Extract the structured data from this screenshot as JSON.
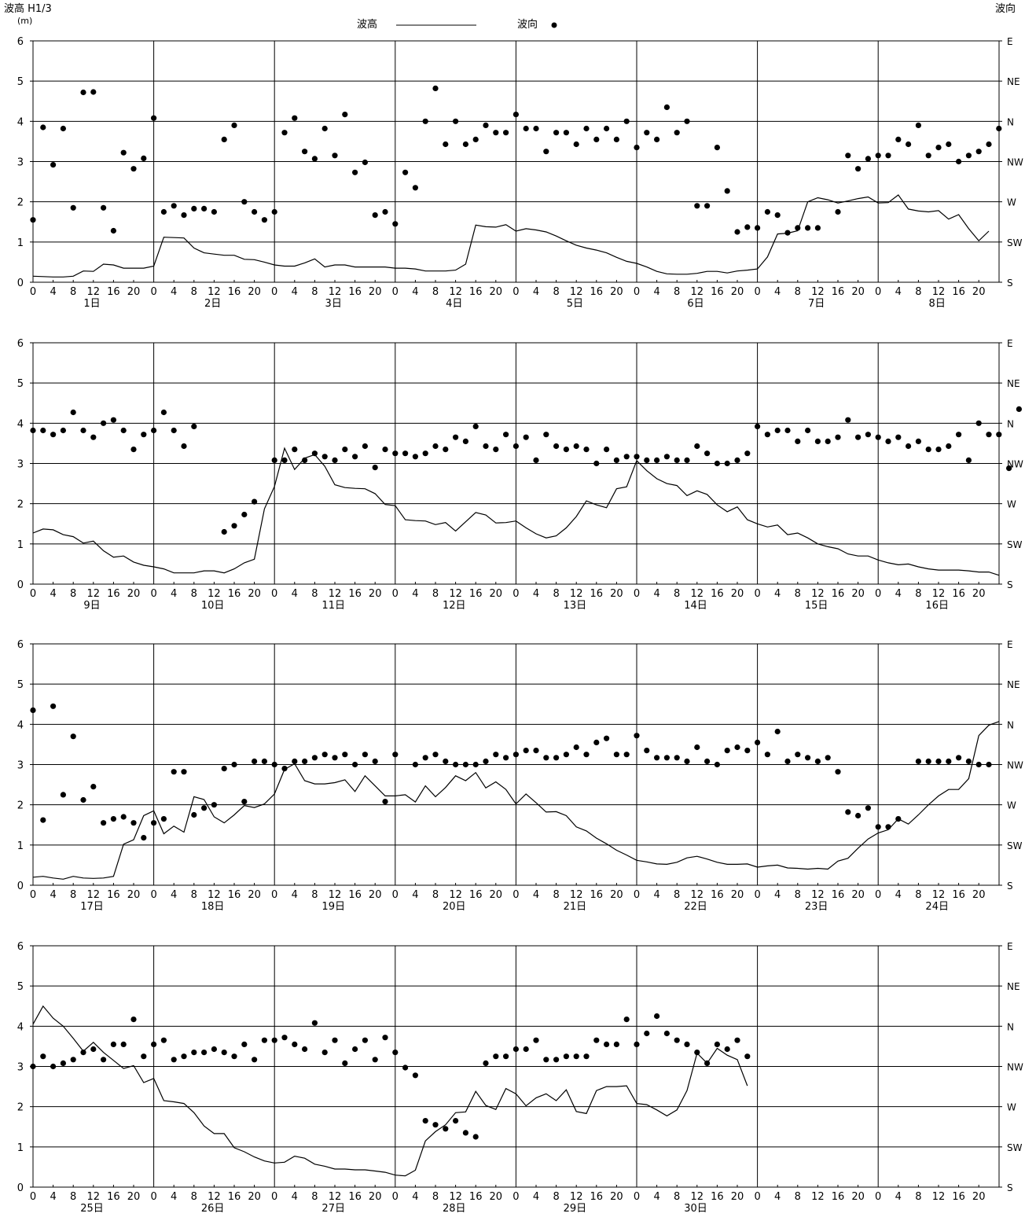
{
  "header": {
    "left_axis_title": "波高 H1/3",
    "left_axis_unit": "(m)",
    "right_axis_title": "波向",
    "legend_wave_height": "波高",
    "legend_wave_direction": "波向"
  },
  "chart_data": {
    "type": "line",
    "description_free": true,
    "y_left": {
      "label": "波高 H1/3",
      "unit": "(m)",
      "range": [
        0,
        6
      ],
      "ticks": [
        "0",
        "1",
        "2",
        "3",
        "4",
        "5",
        "6"
      ]
    },
    "y_right": {
      "label": "波向",
      "ticks": [
        "S",
        "SW",
        "W",
        "NW",
        "N",
        "NE",
        "E"
      ]
    },
    "x_hour_ticks": [
      "0",
      "4",
      "8",
      "12",
      "16",
      "20"
    ],
    "legend": [
      {
        "name": "波高",
        "style": "line"
      },
      {
        "name": "波向",
        "style": "dot"
      }
    ],
    "direction_scale": {
      "S": 0,
      "SW": 1,
      "W": 2,
      "NW": 3,
      "N": 4,
      "NE": 5,
      "E": 6
    },
    "panels": [
      {
        "days": [
          "1日",
          "2日",
          "3日",
          "4日",
          "5日",
          "6日",
          "7日",
          "8日"
        ],
        "wave_height": [
          0.15,
          0.14,
          0.13,
          0.13,
          0.15,
          0.28,
          0.27,
          0.45,
          0.43,
          0.35,
          0.35,
          0.35,
          0.4,
          1.12,
          1.11,
          1.1,
          0.85,
          0.73,
          0.7,
          0.67,
          0.67,
          0.57,
          0.56,
          0.5,
          0.43,
          0.4,
          0.4,
          0.48,
          0.58,
          0.38,
          0.43,
          0.43,
          0.38,
          0.38,
          0.38,
          0.38,
          0.35,
          0.35,
          0.33,
          0.28,
          0.28,
          0.28,
          0.3,
          0.45,
          1.42,
          1.38,
          1.37,
          1.43,
          1.27,
          1.33,
          1.3,
          1.25,
          1.15,
          1.03,
          0.92,
          0.85,
          0.8,
          0.73,
          0.62,
          0.52,
          0.47,
          0.38,
          0.27,
          0.21,
          0.2,
          0.2,
          0.22,
          0.27,
          0.27,
          0.23,
          0.28,
          0.3,
          0.33,
          0.63,
          1.2,
          1.22,
          1.28,
          2.0,
          2.1,
          2.05,
          1.97,
          2.02,
          2.08,
          2.12,
          1.97,
          1.98,
          2.17,
          1.82,
          1.77,
          1.75,
          1.78,
          1.57,
          1.68,
          1.33,
          1.03,
          1.27
        ],
        "wave_direction": [
          1.55,
          3.85,
          2.92,
          3.82,
          1.85,
          4.72,
          4.73,
          1.85,
          1.28,
          3.22,
          2.82,
          3.08,
          4.08,
          1.75,
          1.9,
          1.67,
          1.83,
          1.83,
          1.75,
          3.55,
          3.9,
          2.0,
          1.75,
          1.55,
          1.75,
          3.72,
          4.08,
          3.25,
          3.07,
          3.82,
          3.15,
          4.17,
          2.73,
          2.98,
          1.67,
          1.75,
          1.45,
          2.73,
          2.35,
          4.0,
          4.82,
          3.43,
          4.0,
          3.43,
          3.55,
          3.9,
          3.72,
          3.72,
          4.17,
          3.82,
          3.82,
          3.25,
          3.72,
          3.72,
          3.43,
          3.82,
          3.55,
          3.82,
          3.55,
          4.0,
          3.35,
          3.72,
          3.55,
          4.35,
          3.72,
          4.0,
          1.9,
          1.9,
          3.35,
          2.27,
          1.25,
          1.37,
          1.35,
          1.75,
          1.67,
          1.23,
          1.35,
          1.35,
          1.35,
          null,
          1.75,
          3.15,
          2.82,
          3.07,
          3.15,
          3.15,
          3.55,
          3.43,
          3.9,
          3.15,
          3.35,
          3.43,
          3.0,
          3.15,
          3.25,
          3.43,
          3.82
        ]
      },
      {
        "days": [
          "9日",
          "10日",
          "11日",
          "12日",
          "13日",
          "14日",
          "15日",
          "16日"
        ],
        "wave_height": [
          1.27,
          1.37,
          1.35,
          1.23,
          1.18,
          1.02,
          1.07,
          0.83,
          0.67,
          0.7,
          0.55,
          0.47,
          0.43,
          0.38,
          0.28,
          0.28,
          0.28,
          0.33,
          0.33,
          0.28,
          0.38,
          0.53,
          0.62,
          1.87,
          2.43,
          3.38,
          2.85,
          3.13,
          3.22,
          2.93,
          2.47,
          2.4,
          2.38,
          2.37,
          2.25,
          1.98,
          1.95,
          1.6,
          1.58,
          1.57,
          1.48,
          1.53,
          1.32,
          1.55,
          1.78,
          1.72,
          1.52,
          1.53,
          1.57,
          1.4,
          1.25,
          1.15,
          1.2,
          1.4,
          1.68,
          2.07,
          1.97,
          1.9,
          2.37,
          2.42,
          3.07,
          2.82,
          2.62,
          2.5,
          2.45,
          2.2,
          2.32,
          2.23,
          1.97,
          1.8,
          1.92,
          1.6,
          1.5,
          1.42,
          1.47,
          1.23,
          1.27,
          1.15,
          1.0,
          0.93,
          0.88,
          0.75,
          0.7,
          0.7,
          0.6,
          0.53,
          0.48,
          0.5,
          0.43,
          0.38,
          0.35,
          0.35,
          0.35,
          0.33,
          0.3,
          0.3,
          0.22
        ],
        "wave_direction": [
          3.82,
          3.82,
          3.72,
          3.82,
          4.27,
          3.82,
          3.65,
          4.0,
          4.08,
          3.82,
          3.35,
          3.72,
          3.82,
          4.27,
          3.82,
          3.43,
          3.92,
          null,
          null,
          1.3,
          1.45,
          1.73,
          2.05,
          null,
          3.08,
          3.08,
          3.35,
          3.08,
          3.25,
          3.17,
          3.08,
          3.35,
          3.17,
          3.43,
          2.9,
          3.35,
          3.25,
          3.25,
          3.17,
          3.25,
          3.43,
          3.35,
          3.65,
          3.55,
          3.92,
          3.43,
          3.35,
          3.72,
          3.43,
          3.65,
          3.08,
          3.72,
          3.43,
          3.35,
          3.43,
          3.35,
          3.0,
          3.35,
          3.08,
          3.17,
          3.17,
          3.08,
          3.08,
          3.17,
          3.08,
          3.08,
          3.43,
          3.25,
          3.0,
          3.0,
          3.08,
          3.25,
          3.92,
          3.72,
          3.82,
          3.82,
          3.55,
          3.82,
          3.55,
          3.55,
          3.65,
          4.08,
          3.65,
          3.72,
          3.65,
          3.55,
          3.65,
          3.43,
          3.55,
          3.35,
          3.35,
          3.43,
          3.72,
          3.08,
          4.0,
          3.72,
          3.72,
          2.88,
          4.35
        ]
      },
      {
        "days": [
          "17日",
          "18日",
          "19日",
          "20日",
          "21日",
          "22日",
          "23日",
          "24日"
        ],
        "wave_height": [
          0.2,
          0.22,
          0.18,
          0.15,
          0.22,
          0.18,
          0.17,
          0.18,
          0.22,
          1.02,
          1.13,
          1.73,
          1.85,
          1.28,
          1.47,
          1.32,
          2.2,
          2.13,
          1.7,
          1.55,
          1.75,
          1.98,
          1.93,
          2.02,
          2.27,
          2.88,
          3.02,
          2.6,
          2.52,
          2.52,
          2.55,
          2.62,
          2.33,
          2.72,
          2.47,
          2.22,
          2.22,
          2.25,
          2.07,
          2.47,
          2.2,
          2.43,
          2.72,
          2.6,
          2.8,
          2.42,
          2.57,
          2.38,
          2.02,
          2.27,
          2.05,
          1.82,
          1.83,
          1.73,
          1.45,
          1.35,
          1.17,
          1.03,
          0.87,
          0.75,
          0.62,
          0.58,
          0.53,
          0.52,
          0.57,
          0.68,
          0.72,
          0.65,
          0.57,
          0.52,
          0.52,
          0.53,
          0.45,
          0.48,
          0.5,
          0.43,
          0.42,
          0.4,
          0.42,
          0.4,
          0.6,
          0.67,
          0.92,
          1.15,
          1.3,
          1.38,
          1.65,
          1.52,
          1.75,
          2.0,
          2.22,
          2.38,
          2.38,
          2.65,
          3.72,
          3.98,
          4.07
        ],
        "wave_direction": [
          4.35,
          1.62,
          4.45,
          2.25,
          3.7,
          2.12,
          2.45,
          1.55,
          1.65,
          1.7,
          1.55,
          1.18,
          1.55,
          1.65,
          2.82,
          2.82,
          1.75,
          1.92,
          2.0,
          2.9,
          3.0,
          2.08,
          3.08,
          3.08,
          3.0,
          2.9,
          3.08,
          3.08,
          3.17,
          3.25,
          3.17,
          3.25,
          3.0,
          3.25,
          3.08,
          2.08,
          3.25,
          null,
          3.0,
          3.17,
          3.25,
          3.08,
          3.0,
          3.0,
          3.0,
          3.08,
          3.25,
          3.17,
          3.25,
          3.35,
          3.35,
          3.17,
          3.17,
          3.25,
          3.43,
          3.25,
          3.55,
          3.65,
          3.25,
          3.25,
          3.72,
          3.35,
          3.17,
          3.17,
          3.17,
          3.08,
          3.43,
          3.08,
          3.0,
          3.35,
          3.43,
          3.35,
          3.55,
          3.25,
          3.82,
          3.08,
          3.25,
          3.17,
          3.08,
          3.17,
          2.82,
          1.82,
          1.73,
          1.92,
          1.45,
          1.45,
          1.65,
          null,
          3.08,
          3.08,
          3.08,
          3.08,
          3.17,
          3.08,
          3.0,
          3.0
        ]
      },
      {
        "days": [
          "25日",
          "26日",
          "27日",
          "28日",
          "29日",
          "30日"
        ],
        "wave_height": [
          4.05,
          4.5,
          4.2,
          4.0,
          3.7,
          3.38,
          3.6,
          3.35,
          3.15,
          2.95,
          3.02,
          2.6,
          2.7,
          2.15,
          2.12,
          2.08,
          1.85,
          1.52,
          1.33,
          1.33,
          0.98,
          0.88,
          0.75,
          0.65,
          0.6,
          0.62,
          0.77,
          0.72,
          0.57,
          0.52,
          0.45,
          0.45,
          0.43,
          0.43,
          0.4,
          0.37,
          0.3,
          0.28,
          0.42,
          1.15,
          1.38,
          1.55,
          1.85,
          1.87,
          2.38,
          2.03,
          1.93,
          2.45,
          2.32,
          2.02,
          2.22,
          2.32,
          2.15,
          2.42,
          1.88,
          1.83,
          2.4,
          2.5,
          2.5,
          2.52,
          2.08,
          2.05,
          1.92,
          1.77,
          1.92,
          2.4,
          3.33,
          3.08,
          3.45,
          3.28,
          3.17,
          2.52
        ],
        "wave_direction": [
          3.0,
          3.25,
          3.0,
          3.08,
          3.17,
          3.35,
          3.43,
          3.17,
          3.55,
          3.55,
          4.17,
          3.25,
          3.55,
          3.65,
          3.17,
          3.25,
          3.35,
          3.35,
          3.43,
          3.35,
          3.25,
          3.55,
          3.17,
          3.65,
          3.65,
          3.72,
          3.55,
          3.43,
          4.08,
          3.35,
          3.65,
          3.08,
          3.43,
          3.65,
          3.17,
          3.72,
          3.35,
          2.97,
          2.78,
          1.65,
          1.55,
          1.45,
          1.65,
          1.35,
          1.25,
          3.08,
          3.25,
          3.25,
          3.43,
          3.43,
          3.65,
          3.17,
          3.17,
          3.25,
          3.25,
          3.25,
          3.65,
          3.55,
          3.55,
          4.17,
          3.55,
          3.82,
          4.25,
          3.82,
          3.65,
          3.55,
          3.35,
          3.08,
          3.55,
          3.43,
          3.65,
          3.25
        ]
      }
    ]
  }
}
